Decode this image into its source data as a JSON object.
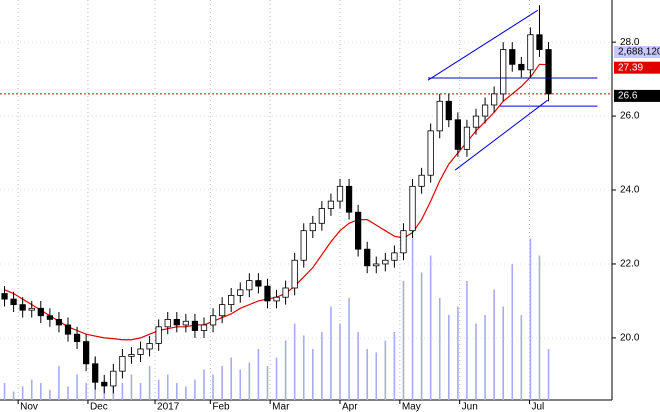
{
  "chart_data": {
    "type": "candlestick",
    "open": [
      21.2,
      21.05,
      20.9,
      20.75,
      20.8,
      20.6,
      20.5,
      20.35,
      20.1,
      19.9,
      19.3,
      18.8,
      18.7,
      19.1,
      19.5,
      19.55,
      19.7,
      19.85,
      20.3,
      20.5,
      20.35,
      20.45,
      20.2,
      20.35,
      20.6,
      20.9,
      21.15,
      21.3,
      21.55,
      21.4,
      21.0,
      21.1,
      21.35,
      22.1,
      22.9,
      23.1,
      23.5,
      23.7,
      24.1,
      23.4,
      22.4,
      21.95,
      22.0,
      22.1,
      22.3,
      22.9,
      24.1,
      24.4,
      25.6,
      26.4,
      25.9,
      25.1,
      25.7,
      26.0,
      26.3,
      26.6,
      27.8,
      27.4,
      27.25,
      28.2,
      27.8
    ],
    "high": [
      21.4,
      21.25,
      21.1,
      21.0,
      21.0,
      20.8,
      20.7,
      20.55,
      20.3,
      20.1,
      19.5,
      19.0,
      19.3,
      19.7,
      19.75,
      19.9,
      20.05,
      20.5,
      20.7,
      20.7,
      20.65,
      20.65,
      20.55,
      20.8,
      21.1,
      21.35,
      21.5,
      21.75,
      21.75,
      21.6,
      21.3,
      21.55,
      22.3,
      23.1,
      23.3,
      23.7,
      23.9,
      24.3,
      24.3,
      23.6,
      22.6,
      22.2,
      22.3,
      22.5,
      23.1,
      24.3,
      24.6,
      25.8,
      26.6,
      26.6,
      26.1,
      25.9,
      26.2,
      26.5,
      26.8,
      28.0,
      28.0,
      27.6,
      28.4,
      29.0,
      28.0
    ],
    "low": [
      20.85,
      20.7,
      20.55,
      20.55,
      20.4,
      20.3,
      20.15,
      19.9,
      19.7,
      19.1,
      18.6,
      18.5,
      18.5,
      18.9,
      19.3,
      19.35,
      19.5,
      19.65,
      20.1,
      20.15,
      20.15,
      20.0,
      20.0,
      20.15,
      20.4,
      20.7,
      20.95,
      21.1,
      21.2,
      20.8,
      20.8,
      20.9,
      21.15,
      21.9,
      22.7,
      22.9,
      23.3,
      23.5,
      23.2,
      22.2,
      21.75,
      21.75,
      21.8,
      21.9,
      22.1,
      22.7,
      23.9,
      24.2,
      25.4,
      25.7,
      24.9,
      24.9,
      25.5,
      25.8,
      26.1,
      26.4,
      27.2,
      27.05,
      27.05,
      27.6,
      26.4
    ],
    "close": [
      21.05,
      20.9,
      20.75,
      20.8,
      20.6,
      20.5,
      20.35,
      20.1,
      19.9,
      19.3,
      18.8,
      18.7,
      19.1,
      19.5,
      19.55,
      19.7,
      19.85,
      20.3,
      20.5,
      20.35,
      20.45,
      20.2,
      20.35,
      20.6,
      20.9,
      21.15,
      21.3,
      21.55,
      21.4,
      21.0,
      21.1,
      21.35,
      22.1,
      22.9,
      23.1,
      23.5,
      23.7,
      24.1,
      23.4,
      22.4,
      21.95,
      22.0,
      22.1,
      22.3,
      22.9,
      24.1,
      24.4,
      25.6,
      26.4,
      25.9,
      25.1,
      25.7,
      26.0,
      26.3,
      26.6,
      27.8,
      27.4,
      27.25,
      28.2,
      27.8,
      26.6
    ],
    "volume": [
      10,
      5,
      8,
      12,
      10,
      6,
      20,
      8,
      15,
      10,
      25,
      12,
      8,
      10,
      15,
      10,
      20,
      12,
      15,
      10,
      8,
      12,
      18,
      15,
      20,
      25,
      18,
      22,
      30,
      20,
      25,
      35,
      45,
      38,
      30,
      40,
      55,
      45,
      60,
      40,
      30,
      28,
      35,
      40,
      70,
      95,
      75,
      85,
      60,
      50,
      55,
      70,
      45,
      50,
      65,
      55,
      80,
      50,
      95,
      85,
      30
    ],
    "volume_color": "#aaaaee",
    "volume_ylim": [
      0,
      100
    ],
    "ma": {
      "color": "#e00000",
      "values": [
        21.3,
        21.2,
        21.05,
        20.9,
        20.75,
        20.6,
        20.45,
        20.3,
        20.2,
        20.1,
        20.05,
        20.0,
        19.98,
        19.95,
        19.95,
        20.0,
        20.1,
        20.2,
        20.25,
        20.3,
        20.3,
        20.35,
        20.35,
        20.45,
        20.55,
        20.65,
        20.8,
        20.9,
        21.0,
        21.05,
        21.1,
        21.2,
        21.4,
        21.65,
        21.9,
        22.25,
        22.6,
        22.9,
        23.1,
        23.2,
        23.2,
        23.05,
        22.9,
        22.75,
        22.7,
        22.85,
        23.2,
        23.7,
        24.25,
        24.7,
        25.0,
        25.3,
        25.6,
        25.85,
        26.1,
        26.4,
        26.6,
        26.8,
        27.05,
        27.4,
        27.39
      ]
    },
    "last_price": 26.6,
    "last_volume_label": "2,688,120",
    "trendlines": [
      [
        46.7,
        26.97,
        58.8,
        28.86
      ],
      [
        49.7,
        24.54,
        59.9,
        26.43
      ],
      [
        46.7,
        27.03,
        65.4,
        27.03
      ],
      [
        54.6,
        26.27,
        65.4,
        26.27
      ]
    ],
    "trendline_color": "#0000dd",
    "xlim": [
      -0.5,
      67
    ],
    "xticks": [
      {
        "value": 1.5,
        "label": "Nov"
      },
      {
        "value": 9.2,
        "label": "Dec"
      },
      {
        "value": 16.6,
        "label": "2017"
      },
      {
        "value": 22.7,
        "label": "Feb"
      },
      {
        "value": 29.3,
        "label": "Mar"
      },
      {
        "value": 37,
        "label": "Apr"
      },
      {
        "value": 43.6,
        "label": "May"
      },
      {
        "value": 50.2,
        "label": "Jun"
      },
      {
        "value": 57.9,
        "label": "Jul"
      }
    ],
    "ylim": [
      18.32,
      29.14
    ],
    "yticks": [
      {
        "value": 20,
        "label": "20.0"
      },
      {
        "value": 22,
        "label": "22.0"
      },
      {
        "value": 24,
        "label": "24.0"
      },
      {
        "value": 26,
        "label": "26.0"
      },
      {
        "value": 28,
        "label": "28.0"
      }
    ],
    "grid": true
  }
}
